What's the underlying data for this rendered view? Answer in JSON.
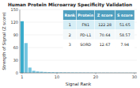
{
  "chart_data": {
    "type": "bar",
    "title": "Human Protein Microarray Specificity Validation",
    "xlabel": "Signal Rank",
    "ylabel": "Strength of Signal (Z score)",
    "x": [
      1,
      2,
      3,
      4,
      5,
      6,
      7,
      8,
      9,
      10,
      11,
      12,
      13,
      14,
      15,
      16,
      17,
      18,
      19,
      20,
      21,
      22,
      23,
      24,
      25,
      26,
      27,
      28,
      29,
      30
    ],
    "values": [
      122.28,
      70.64,
      12.67,
      5.0,
      3.5,
      2.8,
      2.2,
      1.9,
      1.7,
      1.5,
      1.3,
      1.2,
      1.1,
      1.0,
      0.9,
      0.9,
      0.8,
      0.8,
      0.7,
      0.7,
      0.6,
      0.6,
      0.6,
      0.5,
      0.5,
      0.5,
      0.4,
      0.4,
      0.4,
      0.4
    ],
    "colors": [
      "#3aaccc",
      "#74c5e0",
      "#74c5e0",
      "#74c5e0",
      "#74c5e0",
      "#74c5e0",
      "#74c5e0",
      "#74c5e0",
      "#74c5e0",
      "#74c5e0",
      "#74c5e0",
      "#74c5e0",
      "#74c5e0",
      "#74c5e0",
      "#74c5e0",
      "#74c5e0",
      "#74c5e0",
      "#74c5e0",
      "#74c5e0",
      "#74c5e0",
      "#74c5e0",
      "#74c5e0",
      "#74c5e0",
      "#74c5e0",
      "#74c5e0",
      "#74c5e0",
      "#74c5e0",
      "#74c5e0",
      "#74c5e0",
      "#74c5e0"
    ],
    "xlim": [
      0.4,
      30.6
    ],
    "xticks": [
      1,
      10,
      20,
      30
    ],
    "ylim": [
      0,
      150
    ],
    "yticks": [
      0,
      30,
      60,
      90,
      120,
      150
    ],
    "table": {
      "headers": [
        "Rank",
        "Protein",
        "Z score",
        "S score"
      ],
      "rows": [
        [
          "1",
          "FN1",
          "122.28",
          "51.65"
        ],
        [
          "2",
          "PD-L1",
          "70.64",
          "58.57"
        ],
        [
          "3",
          "SORD",
          "12.67",
          "7.94"
        ]
      ]
    }
  }
}
